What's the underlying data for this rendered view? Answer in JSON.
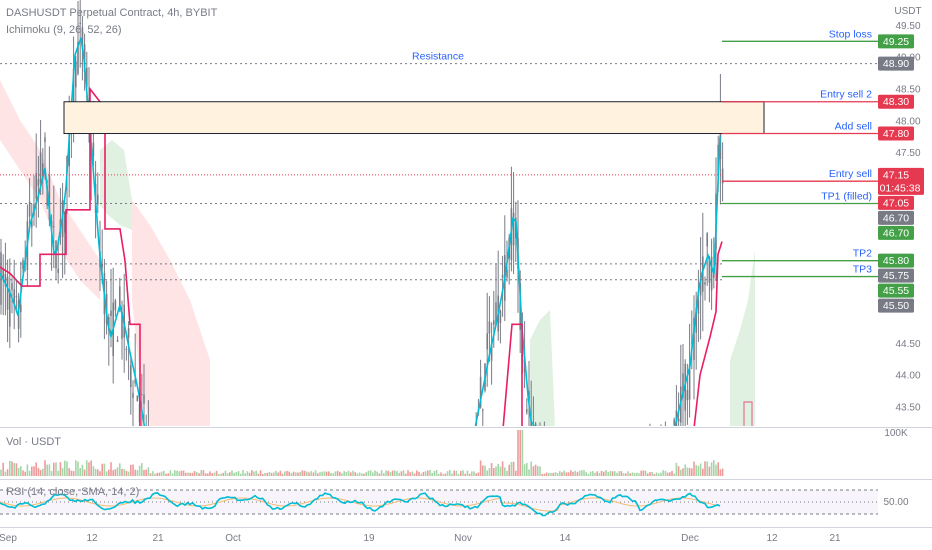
{
  "header": {
    "symbol_line": "DASHUSDT Perpetual Contract, 4h, BYBIT",
    "indicator_line": "Ichimoku (9, 26, 52, 26)"
  },
  "sub_panels": {
    "volume_label": "Vol · USDT",
    "rsi_label": "RSI (14, close, SMA, 14, 2)"
  },
  "price_axis": {
    "currency": "USDT",
    "ticks": [
      "49.50",
      "49.00",
      "48.50",
      "48.00",
      "47.50",
      "44.50",
      "44.00",
      "43.50"
    ],
    "volume_tick": "100K",
    "rsi_tick": "50.00"
  },
  "time_axis": {
    "ticks": [
      "Sep",
      "12",
      "21",
      "Oct",
      "19",
      "Nov",
      "14",
      "Dec",
      "12",
      "21"
    ]
  },
  "annotations": {
    "resistance": "Resistance",
    "stop_loss": "Stop loss",
    "entry_sell_2": "Entry sell 2",
    "add_sell": "Add sell",
    "entry_sell": "Entry sell",
    "tp1": "TP1 (filled)",
    "tp2": "TP2",
    "tp3": "TP3"
  },
  "price_tags": {
    "stop_loss": "49.25",
    "resistance": "48.90",
    "entry_sell_2": "48.30",
    "add_sell": "47.80",
    "last_price": "47.15",
    "countdown": "01:45:38",
    "tp1": "47.05",
    "gray_1": "46.70",
    "green_1": "46.70",
    "tp2": "45.80",
    "gray_2": "45.75",
    "tp3": "45.55",
    "gray_3": "45.50"
  },
  "colors": {
    "bull_candle": "#787b86",
    "kijun": "#e91e63",
    "tenkan": "#00bcd4",
    "cloud_bull": "#c8e6c9",
    "cloud_bear": "#ffcdd2",
    "target_green": "#43a047",
    "sell_red": "#e53950",
    "annotation_blue": "#2962ff",
    "zone_fill": "#fff3e0"
  },
  "chart_data": {
    "type": "line",
    "title": "DASHUSDT Perpetual Contract, 4h, BYBIT",
    "ylim": [
      43.2,
      49.9
    ],
    "levels": [
      {
        "label": "Stop loss",
        "value": 49.25
      },
      {
        "label": "Resistance",
        "value": 48.9
      },
      {
        "label": "Entry sell 2",
        "value": 48.3
      },
      {
        "label": "Add sell",
        "value": 47.8
      },
      {
        "label": "Entry sell",
        "value": 47.15
      },
      {
        "label": "TP1 (filled)",
        "value": 47.05
      },
      {
        "label": "TP2",
        "value": 45.8
      },
      {
        "label": "TP3",
        "value": 45.55
      }
    ],
    "resistance_zone": [
      47.8,
      48.3
    ],
    "last_price": 47.15,
    "rsi_reference": 50.0
  }
}
